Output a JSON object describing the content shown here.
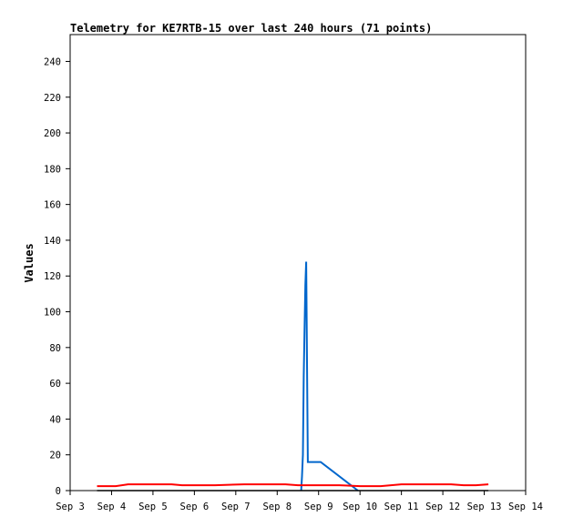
{
  "chart_data": {
    "type": "line",
    "title": "Telemetry for KE7RTB-15 over last 240 hours (71 points)",
    "xlabel": "",
    "ylabel": "Values",
    "ylim": [
      0,
      255
    ],
    "y_ticks": [
      0,
      20,
      40,
      60,
      80,
      100,
      120,
      140,
      160,
      180,
      200,
      220,
      240
    ],
    "xlim": [
      "Sep 3",
      "Sep 14"
    ],
    "x_ticks": [
      "Sep 3",
      "Sep 4",
      "Sep 5",
      "Sep 6",
      "Sep 7",
      "Sep 8",
      "Sep 9",
      "Sep 10",
      "Sep 11",
      "Sep 12",
      "Sep 13",
      "Sep 14"
    ],
    "grid": false,
    "legend": "none",
    "series": [
      {
        "color": "#0066cc",
        "x": [
          8.58,
          8.6,
          8.62,
          8.64,
          8.66,
          8.68,
          8.7,
          8.72,
          8.74,
          8.8,
          9.05,
          9.95
        ],
        "values": [
          0,
          8,
          20,
          64,
          90,
          115,
          128,
          72,
          16,
          16,
          16,
          0
        ]
      },
      {
        "color": "#ff0000",
        "x": [
          3.65,
          4.1,
          4.4,
          5.0,
          5.45,
          5.7,
          6.2,
          6.5,
          7.2,
          7.5,
          8.2,
          8.5,
          8.6,
          9.0,
          9.5,
          10.0,
          10.5,
          11.0,
          11.5,
          12.2,
          12.5,
          12.8,
          13.1
        ],
        "values": [
          2.5,
          2.5,
          3.5,
          3.5,
          3.5,
          3,
          3,
          3,
          3.5,
          3.5,
          3.5,
          3,
          3,
          3,
          3,
          2.5,
          2.5,
          3.5,
          3.5,
          3.5,
          3,
          3,
          3.5
        ]
      },
      {
        "color": "#000000",
        "x": [
          3.65,
          13.1
        ],
        "values": [
          0,
          0
        ]
      }
    ]
  }
}
